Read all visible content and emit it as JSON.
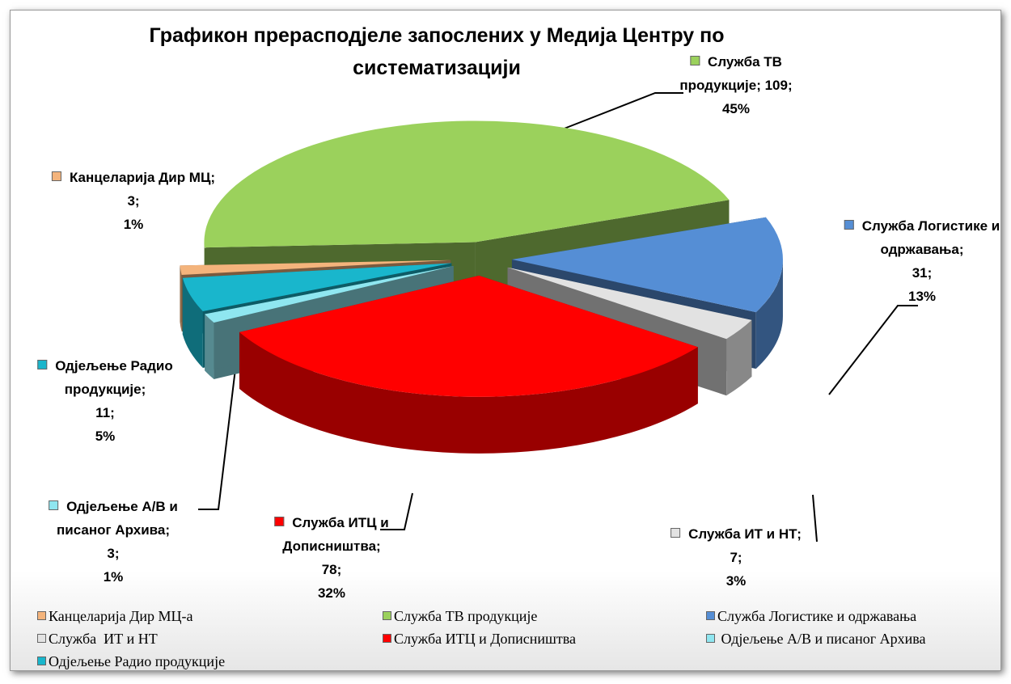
{
  "chart_data": {
    "type": "pie3d",
    "title": "Графикон прерасподјеле запослених у Медија Центру по систематизацији",
    "categories": [
      "Канцеларија Дир МЦ-а",
      "Служба ТВ продукције",
      "Служба Логистике и одржавања",
      "Служба  ИТ и НТ",
      "Служба ИТЦ и Дописништва",
      " Одјељење А/В и писаног Архива",
      "Одјељење Радио продукције"
    ],
    "values": [
      3,
      109,
      31,
      7,
      78,
      3,
      11
    ],
    "value_labels": [
      [
        "Канцеларија Дир МЦ;",
        "3;",
        "1%"
      ],
      [
        "Служба ТВ",
        "продукције; 109;",
        "45%"
      ],
      [
        "Служба Логистике и",
        "одржавања;",
        "31;",
        "13%"
      ],
      [
        "Служба  ИТ и НТ;",
        "7;",
        "3%"
      ],
      [
        "Служба ИТЦ и",
        "Дописништва;",
        "78;",
        "32%"
      ],
      [
        "Одјељење А/В и",
        "писаног Архива;",
        "3;",
        "1%"
      ],
      [
        "Одјељење Радио",
        "продукције;",
        "11;",
        "5%"
      ]
    ],
    "colors": [
      "#f4b47c",
      "#9bd15c",
      "#558ed5",
      "#e2e2e2",
      "#ff0000",
      "#8fe6f0",
      "#19b6cc"
    ],
    "legend": "bottom"
  }
}
